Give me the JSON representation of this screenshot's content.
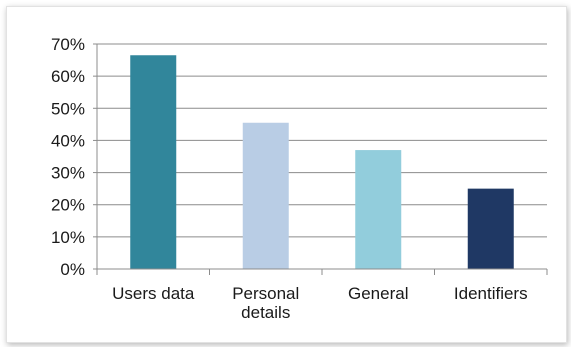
{
  "colors": {
    "grid": "#8c8c8c",
    "axis": "#8c8c8c"
  },
  "chart_data": {
    "type": "bar",
    "title": "",
    "xlabel": "",
    "ylabel": "",
    "ylim": [
      0,
      70
    ],
    "ytick_values": [
      0,
      10,
      20,
      30,
      40,
      50,
      60,
      70
    ],
    "yticks": [
      "0%",
      "10%",
      "20%",
      "30%",
      "40%",
      "50%",
      "60%",
      "70%"
    ],
    "grid": true,
    "legend": "none",
    "categories": [
      [
        "Users data"
      ],
      [
        "Personal",
        "details"
      ],
      [
        "General"
      ],
      [
        "Identifiers"
      ]
    ],
    "values": [
      66.5,
      45.5,
      37,
      25
    ],
    "bar_colors": [
      "#31869b",
      "#b9cde5",
      "#92cddc",
      "#1f3864"
    ]
  }
}
